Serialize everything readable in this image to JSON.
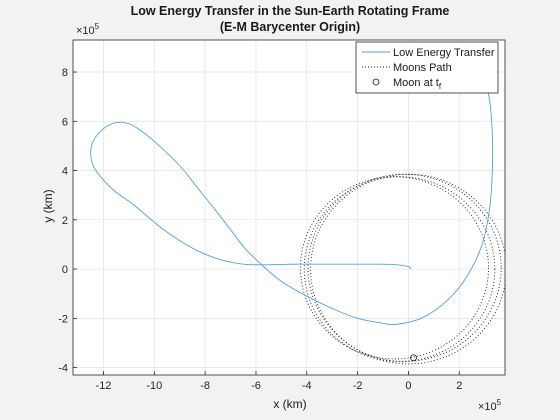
{
  "chart_data": {
    "type": "line",
    "title": "Low Energy Transfer in the Sun-Earth Rotating Frame",
    "subtitle": "(E-M Barycenter Origin)",
    "xlabel": "x (km)",
    "ylabel": "y (km)",
    "x_exponent_label": "×10",
    "x_exponent_power": "5",
    "y_exponent_label": "×10",
    "y_exponent_power": "5",
    "xlim": [
      -13.2,
      3.8
    ],
    "ylim": [
      -4.3,
      9.3
    ],
    "xticks": [
      -12,
      -10,
      -8,
      -6,
      -4,
      -2,
      0,
      2
    ],
    "xtick_labels": [
      "-12",
      "-10",
      "-8",
      "-6",
      "-4",
      "-2",
      "0",
      "2"
    ],
    "yticks": [
      -4,
      -2,
      0,
      2,
      4,
      6,
      8
    ],
    "ytick_labels": [
      "-4",
      "-2",
      "0",
      "2",
      "4",
      "6",
      "8"
    ],
    "units_note": "axis values in units of 1e5 km",
    "grid": true,
    "legend_position": "top-right",
    "series": [
      {
        "name": "Low Energy Transfer",
        "style": "solid",
        "color": "#4fa3d9",
        "x": [
          0.1,
          0.0,
          -0.5,
          -1.2,
          -2.5,
          -4.5,
          -6.5,
          -8.0,
          -9.5,
          -10.8,
          -11.6,
          -12.3,
          -12.5,
          -12.4,
          -12.0,
          -11.5,
          -11.0,
          -10.5,
          -9.8,
          -9.0,
          -8.3,
          -7.6,
          -7.0,
          -6.4,
          -5.8,
          -5.0,
          -4.0,
          -3.0,
          -2.0,
          -1.0,
          -0.5,
          0.5,
          1.5,
          2.3,
          2.9,
          3.2,
          3.3,
          3.3,
          3.2,
          3.0,
          2.8
        ],
        "y": [
          0.0,
          0.1,
          0.18,
          0.2,
          0.2,
          0.2,
          0.2,
          0.6,
          1.5,
          2.6,
          3.2,
          4.0,
          4.6,
          5.2,
          5.7,
          5.95,
          5.9,
          5.6,
          5.0,
          4.2,
          3.3,
          2.4,
          1.6,
          0.8,
          0.2,
          -0.5,
          -1.1,
          -1.6,
          -2.0,
          -2.2,
          -2.25,
          -2.0,
          -1.3,
          -0.3,
          1.0,
          2.5,
          4.0,
          5.5,
          6.8,
          7.8,
          8.6
        ]
      },
      {
        "name": "Moons Path",
        "style": "dotted",
        "color": "#1a1a1a",
        "circles": [
          {
            "cx": 0.0,
            "cy": 0.0,
            "r": 3.85
          },
          {
            "cx": -0.15,
            "cy": 0.05,
            "r": 3.8
          },
          {
            "cx": -0.35,
            "cy": 0.0,
            "r": 3.75
          },
          {
            "cx": -0.55,
            "cy": 0.05,
            "r": 3.7
          }
        ]
      },
      {
        "name": "Moon at t",
        "name_subscript": "f",
        "style": "marker",
        "color": "#1a1a1a",
        "x": [
          0.2
        ],
        "y": [
          -3.6
        ]
      }
    ]
  }
}
